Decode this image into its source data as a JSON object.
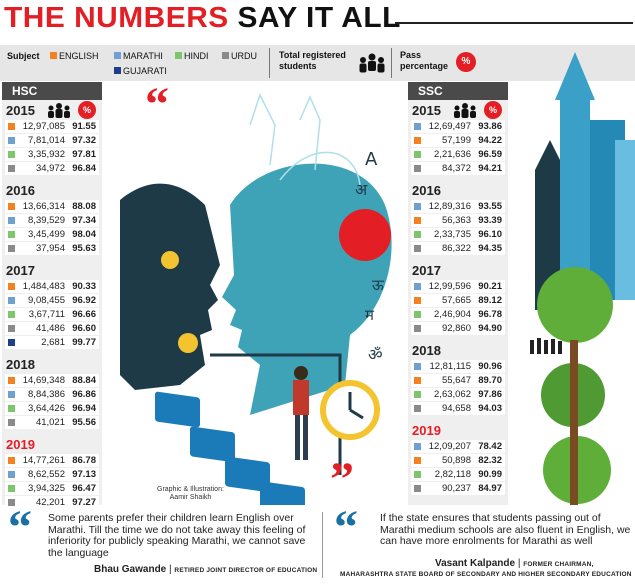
{
  "title": {
    "part1": "THE NUMBERS",
    "part2": "SAY IT ALL"
  },
  "legend": {
    "subject_label": "Subject",
    "items": [
      {
        "label": "ENGLISH",
        "color": "#f4801f"
      },
      {
        "label": "MARATHI",
        "color": "#6ea0d2"
      },
      {
        "label": "HINDI",
        "color": "#7ec66a"
      },
      {
        "label": "URDU",
        "color": "#8a8a8a"
      },
      {
        "label": "GUJARATI",
        "color": "#1f3f8c"
      }
    ],
    "total_label_1": "Total registered",
    "total_label_2": "students",
    "pass_label_1": "Pass",
    "pass_label_2": "percentage",
    "people_icon": "people-icon",
    "percent_icon": "percent-icon",
    "percent_symbol": "%"
  },
  "chart_data": [
    {
      "type": "table",
      "title": "HSC",
      "columns": [
        "Subject",
        "Total registered students",
        "Pass percentage"
      ],
      "years": [
        {
          "year": "2015",
          "rows": [
            {
              "subject": "ENGLISH",
              "students": "12,97,085",
              "pass": "91.55"
            },
            {
              "subject": "MARATHI",
              "students": "7,81,014",
              "pass": "97.32"
            },
            {
              "subject": "HINDI",
              "students": "3,35,932",
              "pass": "97.81"
            },
            {
              "subject": "URDU",
              "students": "34,972",
              "pass": "96.84"
            }
          ]
        },
        {
          "year": "2016",
          "rows": [
            {
              "subject": "ENGLISH",
              "students": "13,66,314",
              "pass": "88.08"
            },
            {
              "subject": "MARATHI",
              "students": "8,39,529",
              "pass": "97.34"
            },
            {
              "subject": "HINDI",
              "students": "3,45,499",
              "pass": "98.04"
            },
            {
              "subject": "URDU",
              "students": "37,954",
              "pass": "95.63"
            }
          ]
        },
        {
          "year": "2017",
          "rows": [
            {
              "subject": "ENGLISH",
              "students": "1,484,483",
              "pass": "90.33"
            },
            {
              "subject": "MARATHI",
              "students": "9,08,455",
              "pass": "96.92"
            },
            {
              "subject": "HINDI",
              "students": "3,67,711",
              "pass": "96.66"
            },
            {
              "subject": "URDU",
              "students": "41,486",
              "pass": "96.60"
            },
            {
              "subject": "GUJARATI",
              "students": "2,681",
              "pass": "99.77"
            }
          ]
        },
        {
          "year": "2018",
          "rows": [
            {
              "subject": "ENGLISH",
              "students": "14,69,348",
              "pass": "88.84"
            },
            {
              "subject": "MARATHI",
              "students": "8,84,386",
              "pass": "96.86"
            },
            {
              "subject": "HINDI",
              "students": "3,64,426",
              "pass": "96.94"
            },
            {
              "subject": "URDU",
              "students": "41,021",
              "pass": "95.56"
            }
          ]
        },
        {
          "year": "2019",
          "rows": [
            {
              "subject": "ENGLISH",
              "students": "14,77,261",
              "pass": "86.78"
            },
            {
              "subject": "MARATHI",
              "students": "8,62,552",
              "pass": "97.13"
            },
            {
              "subject": "HINDI",
              "students": "3,94,325",
              "pass": "96.47"
            },
            {
              "subject": "URDU",
              "students": "42,201",
              "pass": "97.27"
            }
          ]
        }
      ]
    },
    {
      "type": "table",
      "title": "SSC",
      "columns": [
        "Subject",
        "Total registered students",
        "Pass percentage"
      ],
      "years": [
        {
          "year": "2015",
          "rows": [
            {
              "subject": "MARATHI",
              "students": "12,69,497",
              "pass": "93.86"
            },
            {
              "subject": "ENGLISH",
              "students": "57,199",
              "pass": "94.22"
            },
            {
              "subject": "HINDI",
              "students": "2,21,636",
              "pass": "96.59"
            },
            {
              "subject": "URDU",
              "students": "84,372",
              "pass": "94.21"
            }
          ]
        },
        {
          "year": "2016",
          "rows": [
            {
              "subject": "MARATHI",
              "students": "12,89,316",
              "pass": "93.55"
            },
            {
              "subject": "ENGLISH",
              "students": "56,363",
              "pass": "93.39"
            },
            {
              "subject": "HINDI",
              "students": "2,33,735",
              "pass": "96.10"
            },
            {
              "subject": "URDU",
              "students": "86,322",
              "pass": "94.35"
            }
          ]
        },
        {
          "year": "2017",
          "rows": [
            {
              "subject": "MARATHI",
              "students": "12,99,596",
              "pass": "90.21"
            },
            {
              "subject": "ENGLISH",
              "students": "57,665",
              "pass": "89.12"
            },
            {
              "subject": "HINDI",
              "students": "2,46,904",
              "pass": "96.78"
            },
            {
              "subject": "URDU",
              "students": "92,860",
              "pass": "94.90"
            }
          ]
        },
        {
          "year": "2018",
          "rows": [
            {
              "subject": "MARATHI",
              "students": "12,81,115",
              "pass": "90.96"
            },
            {
              "subject": "ENGLISH",
              "students": "55,647",
              "pass": "89.70"
            },
            {
              "subject": "HINDI",
              "students": "2,63,062",
              "pass": "97.86"
            },
            {
              "subject": "URDU",
              "students": "94,658",
              "pass": "94.03"
            }
          ]
        },
        {
          "year": "2019",
          "rows": [
            {
              "subject": "MARATHI",
              "students": "12,09,207",
              "pass": "78.42"
            },
            {
              "subject": "ENGLISH",
              "students": "50,898",
              "pass": "82.32"
            },
            {
              "subject": "HINDI",
              "students": "2,82,118",
              "pass": "90.99"
            },
            {
              "subject": "URDU",
              "students": "90,237",
              "pass": "84.97"
            }
          ]
        }
      ]
    }
  ],
  "illustration": {
    "credit_1": "Graphic & Illustration:",
    "credit_2": "Aamir Shaikh",
    "glyph_a": "A",
    "glyph_aa": "अ",
    "glyph_hi": "ऊ",
    "glyph_ma": "म",
    "glyph_ai": "ॐ"
  },
  "quotes": [
    {
      "text": "Some parents prefer their children learn English over Marathi. Till the time we do not take away this feeling of inferiority for publicly speaking Marathi, we cannot save the language",
      "name": "Bhau Gawande",
      "role": "RETIRED JOINT DIRECTOR OF EDUCATION"
    },
    {
      "text": "If the state ensures that students passing out of Marathi medium schools are also fluent in English, we can have more enrolments for Marathi as well",
      "name": "Vasant Kalpande",
      "role_1": "FORMER CHAIRMAN,",
      "role_2": "MAHARASHTRA STATE BOARD OF SECONDARY AND HIGHER SECONDARY EDUCATION"
    }
  ],
  "quote_glyph": "“",
  "close_glyph": "”"
}
